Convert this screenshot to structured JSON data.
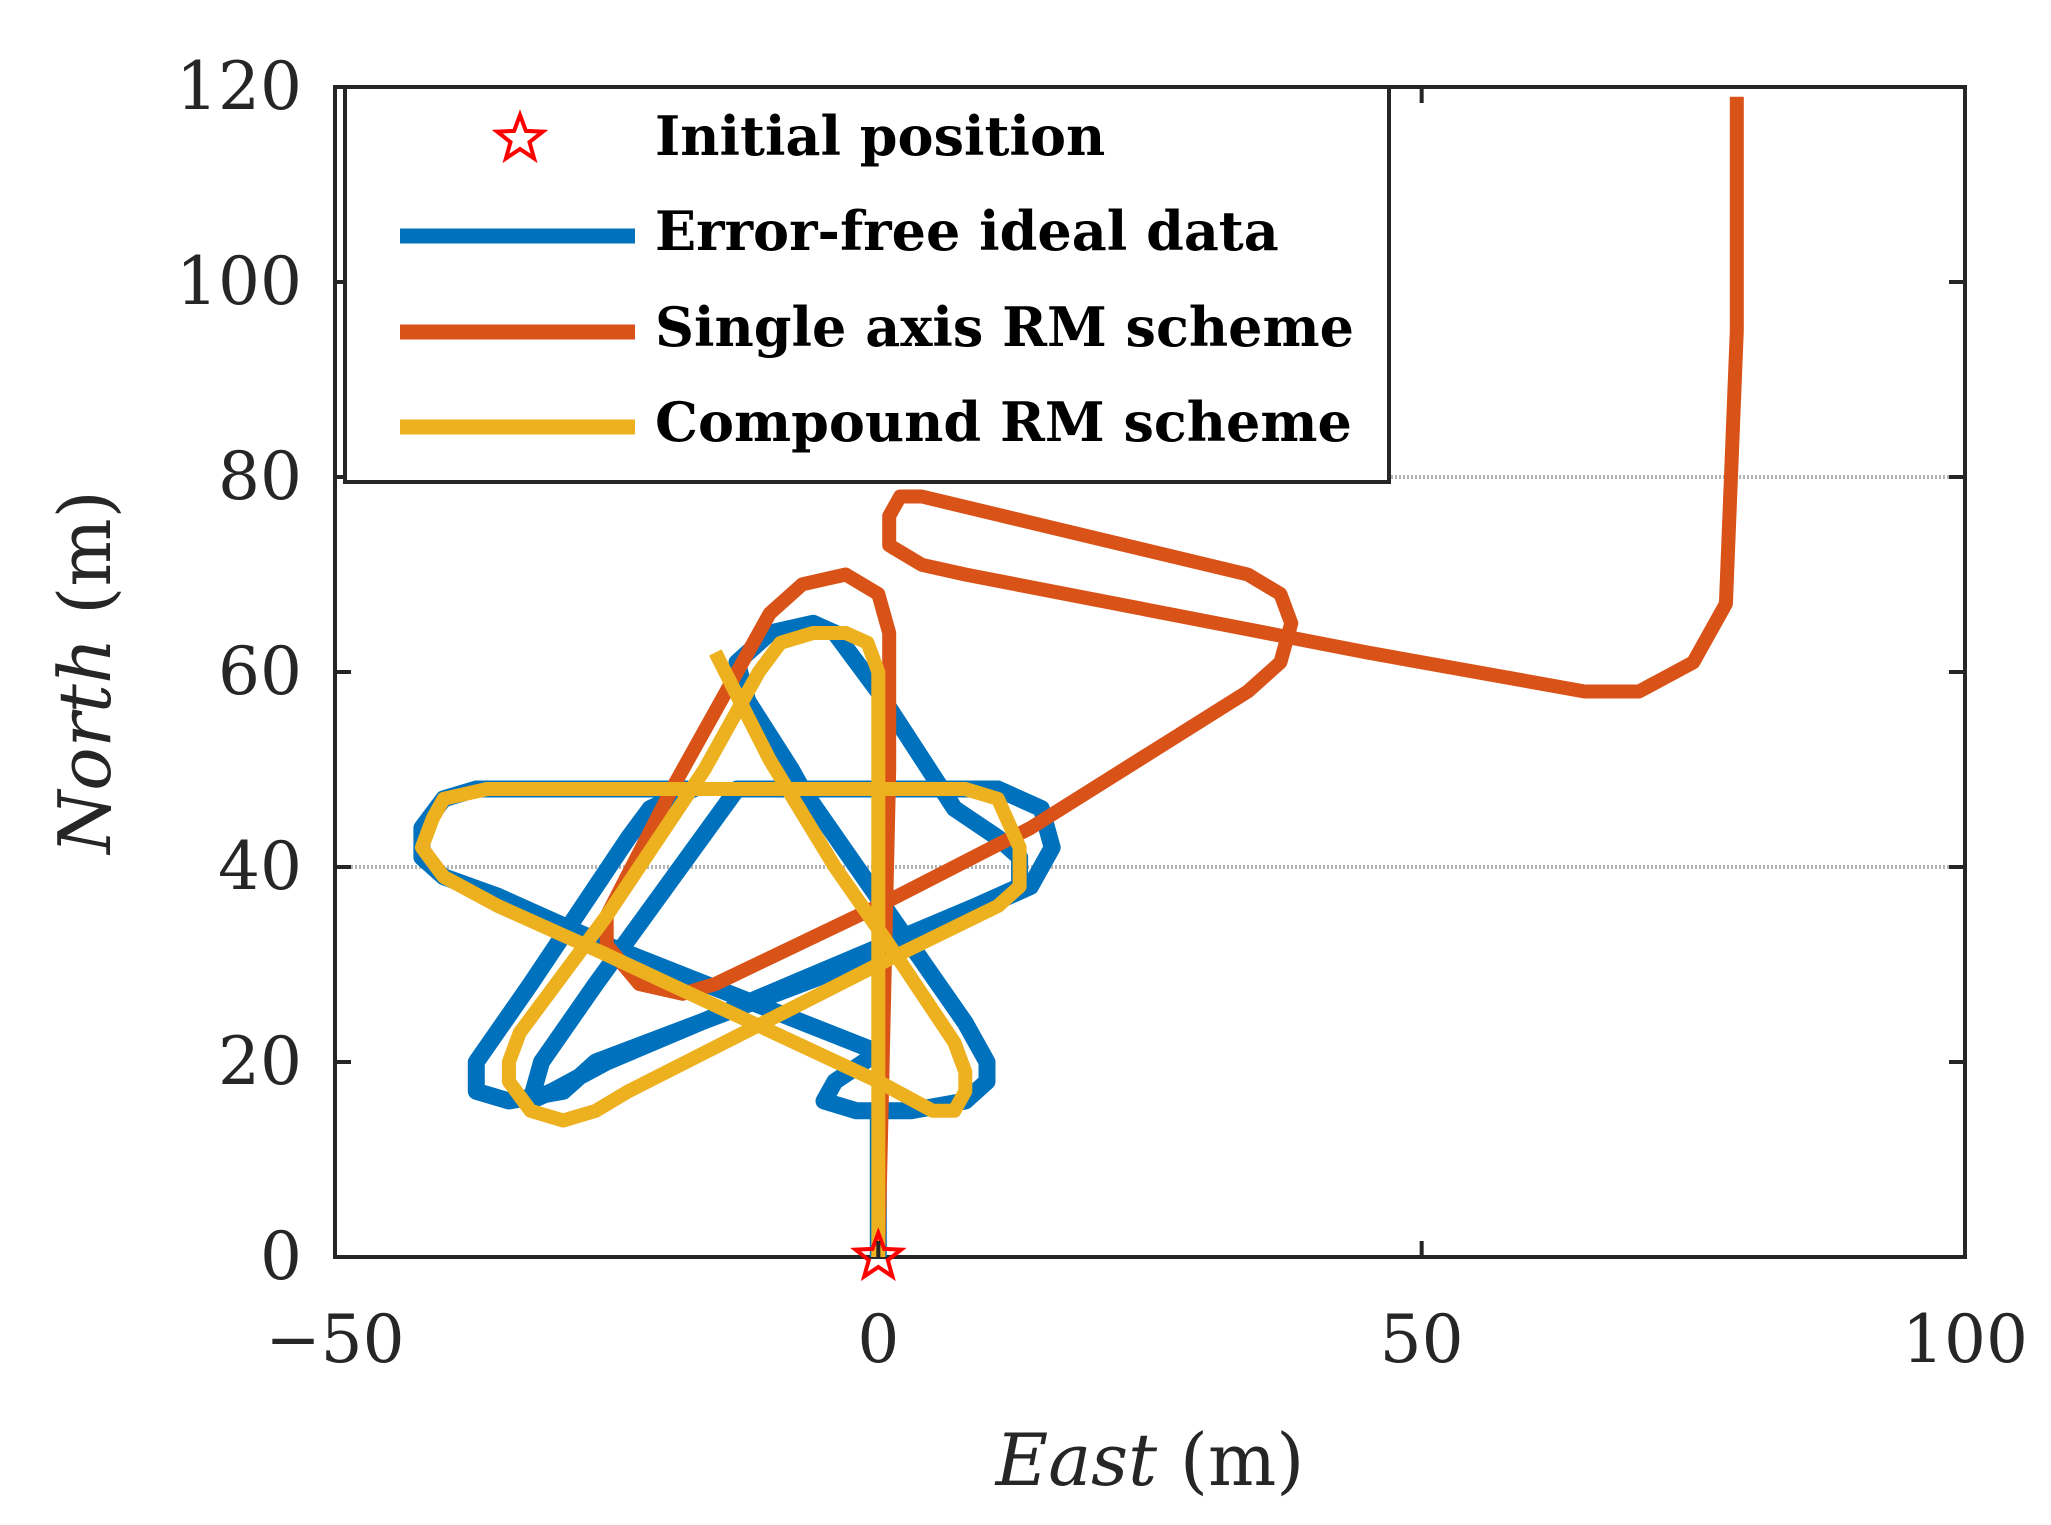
{
  "chart_data": {
    "type": "line",
    "title": "",
    "xlabel": {
      "italic": "East",
      "unit": " (m)"
    },
    "ylabel": {
      "italic": "North",
      "unit": " (m)"
    },
    "xlim": [
      -50,
      100
    ],
    "ylim": [
      0,
      120
    ],
    "xticks": [
      -50,
      0,
      50,
      100
    ],
    "xtick_labels": [
      "−50",
      "0",
      "50",
      "100"
    ],
    "yticks": [
      0,
      20,
      40,
      60,
      80,
      100,
      120
    ],
    "ytick_labels": [
      "0",
      "20",
      "40",
      "60",
      "80",
      "100",
      "120"
    ],
    "grid_y": [
      40,
      80
    ],
    "legend_position": "top-left",
    "legend": [
      {
        "name": "Initial position",
        "kind": "marker",
        "color": "#ff0000"
      },
      {
        "name": "Error-free ideal data",
        "kind": "line",
        "color": "#0072bd"
      },
      {
        "name": "Single axis RM scheme",
        "kind": "line",
        "color": "#d95319"
      },
      {
        "name": "Compound RM scheme",
        "kind": "line",
        "color": "#edb120"
      }
    ],
    "initial_position": {
      "x": 0,
      "y": 0
    },
    "series": [
      {
        "name": "Error-free ideal data",
        "color": "#0072bd",
        "points": [
          [
            0,
            0
          ],
          [
            0,
            15
          ],
          [
            3,
            15
          ],
          [
            8,
            16
          ],
          [
            10,
            18
          ],
          [
            10,
            20
          ],
          [
            8,
            24
          ],
          [
            -2,
            40
          ],
          [
            -7,
            48
          ],
          [
            -8,
            50
          ],
          [
            -12,
            57
          ],
          [
            -13,
            61
          ],
          [
            -10,
            64
          ],
          [
            -6,
            65
          ],
          [
            -4,
            64
          ],
          [
            0,
            58
          ],
          [
            7,
            46
          ],
          [
            11,
            43
          ],
          [
            13,
            41
          ],
          [
            13,
            38
          ],
          [
            9,
            36
          ],
          [
            -8,
            28
          ],
          [
            -25,
            20
          ],
          [
            -30,
            17
          ],
          [
            -32,
            16
          ],
          [
            -31,
            20
          ],
          [
            -26,
            28
          ],
          [
            -13,
            48
          ],
          [
            11,
            48
          ],
          [
            15,
            46
          ],
          [
            16,
            42
          ],
          [
            14,
            38
          ],
          [
            0,
            31
          ],
          [
            -26,
            20
          ],
          [
            -29,
            17
          ],
          [
            -34,
            16
          ],
          [
            -37,
            17
          ],
          [
            -37,
            20
          ],
          [
            -32,
            28
          ],
          [
            -23,
            43
          ],
          [
            -21,
            46
          ],
          [
            -17,
            48
          ],
          [
            -37,
            48
          ],
          [
            -40,
            47
          ],
          [
            -42,
            44
          ],
          [
            -42,
            41
          ],
          [
            -40,
            39
          ],
          [
            -35,
            37
          ],
          [
            -25,
            32
          ],
          [
            0,
            21
          ],
          [
            -4,
            18
          ],
          [
            -5,
            16
          ],
          [
            -2,
            15
          ],
          [
            0,
            15
          ]
        ]
      },
      {
        "name": "Single axis RM scheme",
        "color": "#d95319",
        "points": [
          [
            0,
            0
          ],
          [
            1,
            50
          ],
          [
            1,
            64
          ],
          [
            0,
            68
          ],
          [
            -3,
            70
          ],
          [
            -7,
            69
          ],
          [
            -10,
            66
          ],
          [
            -19,
            48
          ],
          [
            -25,
            35
          ],
          [
            -25,
            32
          ],
          [
            -22,
            28
          ],
          [
            -18,
            27
          ],
          [
            -15,
            28
          ],
          [
            0,
            36
          ],
          [
            14,
            44
          ],
          [
            34,
            58
          ],
          [
            37,
            61
          ],
          [
            38,
            65
          ],
          [
            37,
            68
          ],
          [
            34,
            70
          ],
          [
            4,
            78
          ],
          [
            2,
            78
          ],
          [
            1,
            76
          ],
          [
            1,
            73
          ],
          [
            4,
            71
          ],
          [
            8,
            70
          ],
          [
            45,
            62
          ],
          [
            65,
            58
          ],
          [
            70,
            58
          ],
          [
            75,
            61
          ],
          [
            78,
            67
          ],
          [
            79,
            95
          ],
          [
            79,
            119
          ]
        ]
      },
      {
        "name": "Compound RM scheme",
        "color": "#edb120",
        "points": [
          [
            0,
            0
          ],
          [
            0,
            60
          ],
          [
            -1,
            63
          ],
          [
            -3,
            64
          ],
          [
            -6,
            64
          ],
          [
            -9,
            63
          ],
          [
            -11,
            60
          ],
          [
            -16,
            50
          ],
          [
            -19,
            45
          ],
          [
            -25,
            35
          ],
          [
            -33,
            23
          ],
          [
            -34,
            20
          ],
          [
            -34,
            18
          ],
          [
            -32,
            15
          ],
          [
            -29,
            14
          ],
          [
            -26,
            15
          ],
          [
            -23,
            17
          ],
          [
            0,
            30
          ],
          [
            11,
            36
          ],
          [
            13,
            38
          ],
          [
            13,
            42
          ],
          [
            11,
            47
          ],
          [
            8,
            48
          ],
          [
            -36,
            48
          ],
          [
            -40,
            47
          ],
          [
            -41,
            45
          ],
          [
            -42,
            42
          ],
          [
            -40,
            39
          ],
          [
            -35,
            36
          ],
          [
            -25,
            31
          ],
          [
            0,
            18
          ],
          [
            5,
            15
          ],
          [
            7,
            15
          ],
          [
            8,
            17
          ],
          [
            8,
            19
          ],
          [
            7,
            22
          ],
          [
            1,
            32
          ],
          [
            -4,
            40
          ],
          [
            -10,
            51
          ],
          [
            -15,
            62
          ]
        ]
      }
    ]
  }
}
